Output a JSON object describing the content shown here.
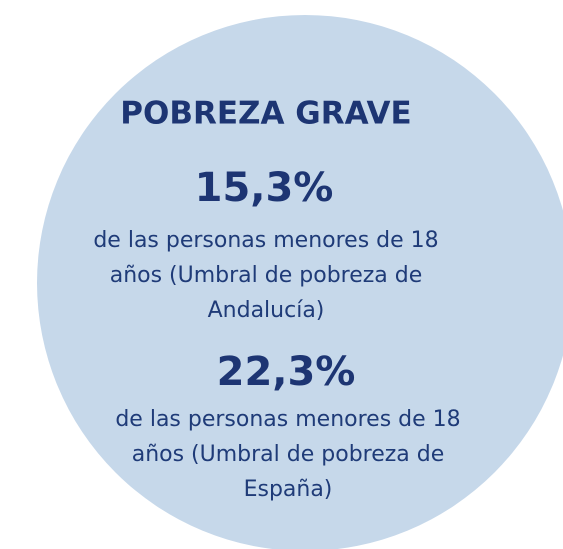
{
  "title": "POBREZA GRAVE",
  "stats": [
    {
      "value": "15,3%",
      "lines": [
        "de las personas menores de 18",
        "años (Umbral de pobreza de",
        "Andalucía)"
      ]
    },
    {
      "value": "22,3%",
      "lines": [
        "de las personas menores de 18",
        "años (Umbral de pobreza de",
        "España)"
      ]
    }
  ]
}
